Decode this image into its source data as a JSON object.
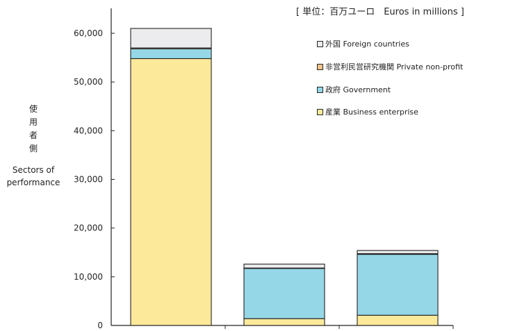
{
  "chart_data": {
    "type": "bar",
    "stacked": true,
    "categories": [
      "",
      "",
      ""
    ],
    "unit_label": "[ 単位：百万ユーロ　Euros in millions ]",
    "ylabel_jp": "使用者側",
    "ylabel_en": "Sectors of performance",
    "ylim": [
      0,
      60000
    ],
    "yticks": [
      "0",
      "10,000",
      "20,000",
      "30,000",
      "40,000",
      "50,000",
      "60,000"
    ],
    "grid": false,
    "legend_position": "top-right",
    "series": [
      {
        "name": "産業 Business enterprise",
        "color": "#fde99a",
        "values": [
          54800,
          1400,
          2100
        ]
      },
      {
        "name": "政府 Government",
        "color": "#95d7e7",
        "values": [
          2000,
          10300,
          12500
        ]
      },
      {
        "name": "非営利民営研究機関 Private non-profit",
        "color": "#f4c48a",
        "values": [
          200,
          100,
          150
        ]
      },
      {
        "name": "外国 Foreign countries",
        "color": "#ececef",
        "values": [
          4000,
          800,
          650
        ]
      }
    ]
  }
}
